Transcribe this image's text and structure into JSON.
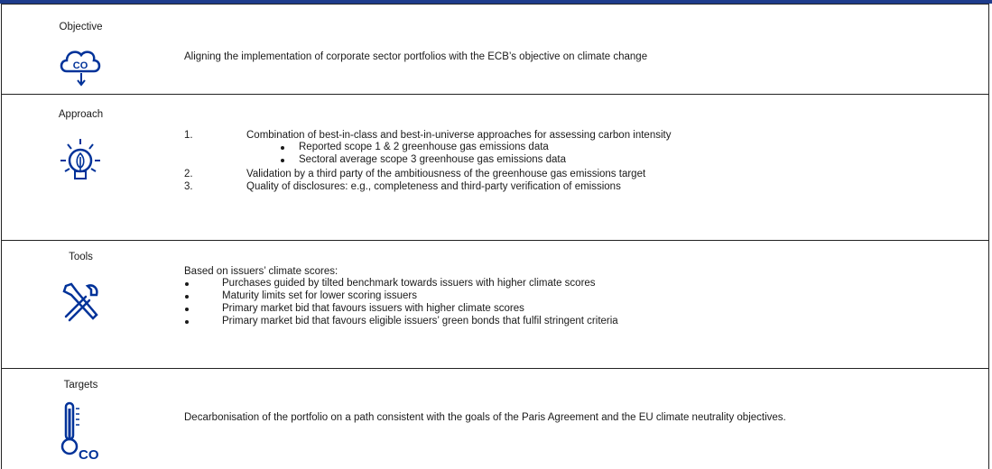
{
  "rows": [
    {
      "label": "Objective",
      "text": "Aligning the implementation of corporate sector portfolios with the ECB’s objective on climate change"
    },
    {
      "label": "Approach",
      "items": [
        {
          "number": "1.",
          "text": "Combination of best-in-class and best-in-universe approaches for assessing carbon intensity",
          "subitems": [
            "Reported scope 1 & 2 greenhouse gas emissions data",
            "Sectoral average scope 3 greenhouse gas emissions data"
          ]
        },
        {
          "number": "2.",
          "text": "Validation by a third party of the ambitiousness of the greenhouse gas emissions target"
        },
        {
          "number": "3.",
          "text": "Quality of disclosures: e.g., completeness and third-party verification of emissions"
        }
      ]
    },
    {
      "label": "Tools",
      "intro": "Based on issuers’ climate scores:",
      "bullets": [
        "Purchases guided by tilted benchmark towards issuers with higher climate scores",
        "Maturity limits set for lower scoring issuers",
        "Primary market bid that favours issuers with higher climate scores",
        "Primary market bid that favours eligible issuers’ green bonds that fulfil stringent criteria"
      ]
    },
    {
      "label": "Targets",
      "text": "Decarbonisation of the portfolio on a path consistent with the goals of the Paris Agreement and the EU climate neutrality objectives."
    }
  ]
}
